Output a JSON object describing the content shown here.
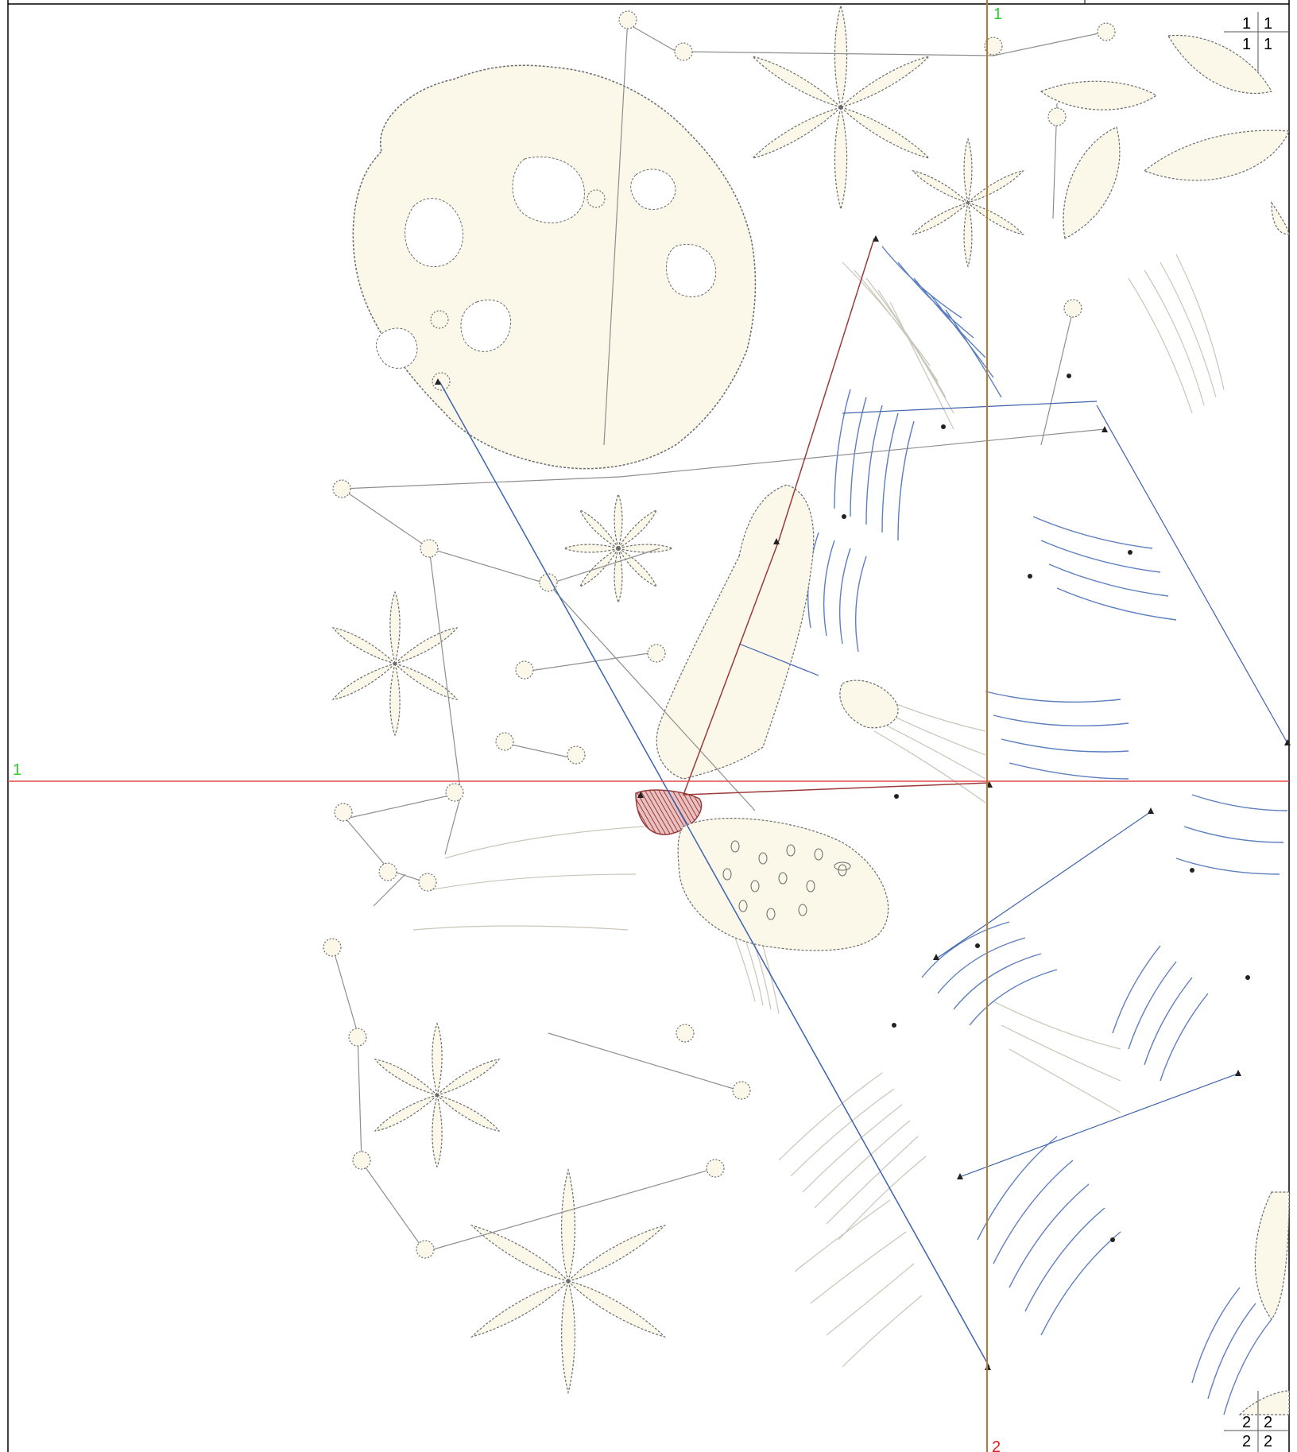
{
  "guides": {
    "vertical_top_label": "1",
    "vertical_bottom_label": "2",
    "horizontal_left_label": "1"
  },
  "page_markers": {
    "top_right": [
      "1",
      "1",
      "1",
      "1"
    ],
    "bottom_right": [
      "2",
      "2",
      "2",
      "2"
    ]
  },
  "colors": {
    "background": "#ffffff",
    "fabric_fill": "#fbf8ea",
    "outline": "#6b6b6b",
    "stitch_light": "#c9c5b8",
    "stitch_blue": "#5c7fc0",
    "travel_blue": "#3d63ad",
    "stitch_red": "#9b3a3a",
    "vertical_guide": "#b8782e",
    "horizontal_guide": "#e04a4a",
    "label_green": "#2ecf2e",
    "label_red": "#e02020"
  }
}
